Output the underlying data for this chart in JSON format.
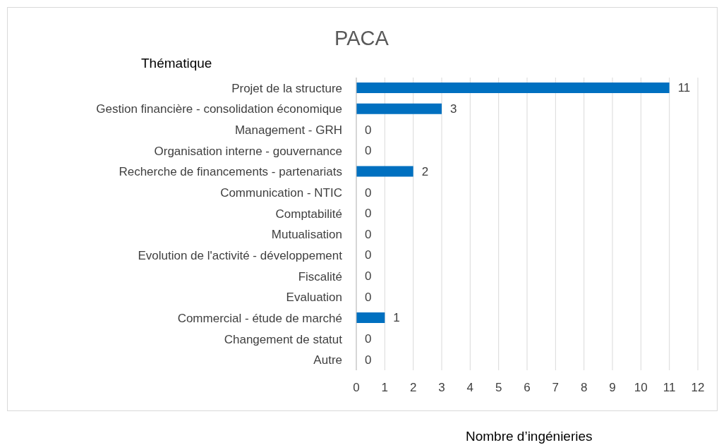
{
  "chart_data": {
    "type": "bar",
    "orientation": "horizontal",
    "title": "PACA",
    "ylabel": "Thématique",
    "xlabel": "Nombre d’ingénieries",
    "categories": [
      "Projet de la structure",
      "Gestion financière - consolidation économique",
      "Management - GRH",
      "Organisation interne - gouvernance",
      "Recherche de financements - partenariats",
      "Communication - NTIC",
      "Comptabilité",
      "Mutualisation",
      "Evolution de l'activité - développement",
      "Fiscalité",
      "Evaluation",
      "Commercial - étude de marché",
      "Changement de statut",
      "Autre"
    ],
    "values": [
      11,
      3,
      0,
      0,
      2,
      0,
      0,
      0,
      0,
      0,
      0,
      1,
      0,
      0
    ],
    "color": "#0070c0",
    "xlim": [
      0,
      12
    ],
    "xticks": [
      0,
      1,
      2,
      3,
      4,
      5,
      6,
      7,
      8,
      9,
      10,
      11,
      12
    ],
    "grid": "x",
    "data_labels": true
  }
}
